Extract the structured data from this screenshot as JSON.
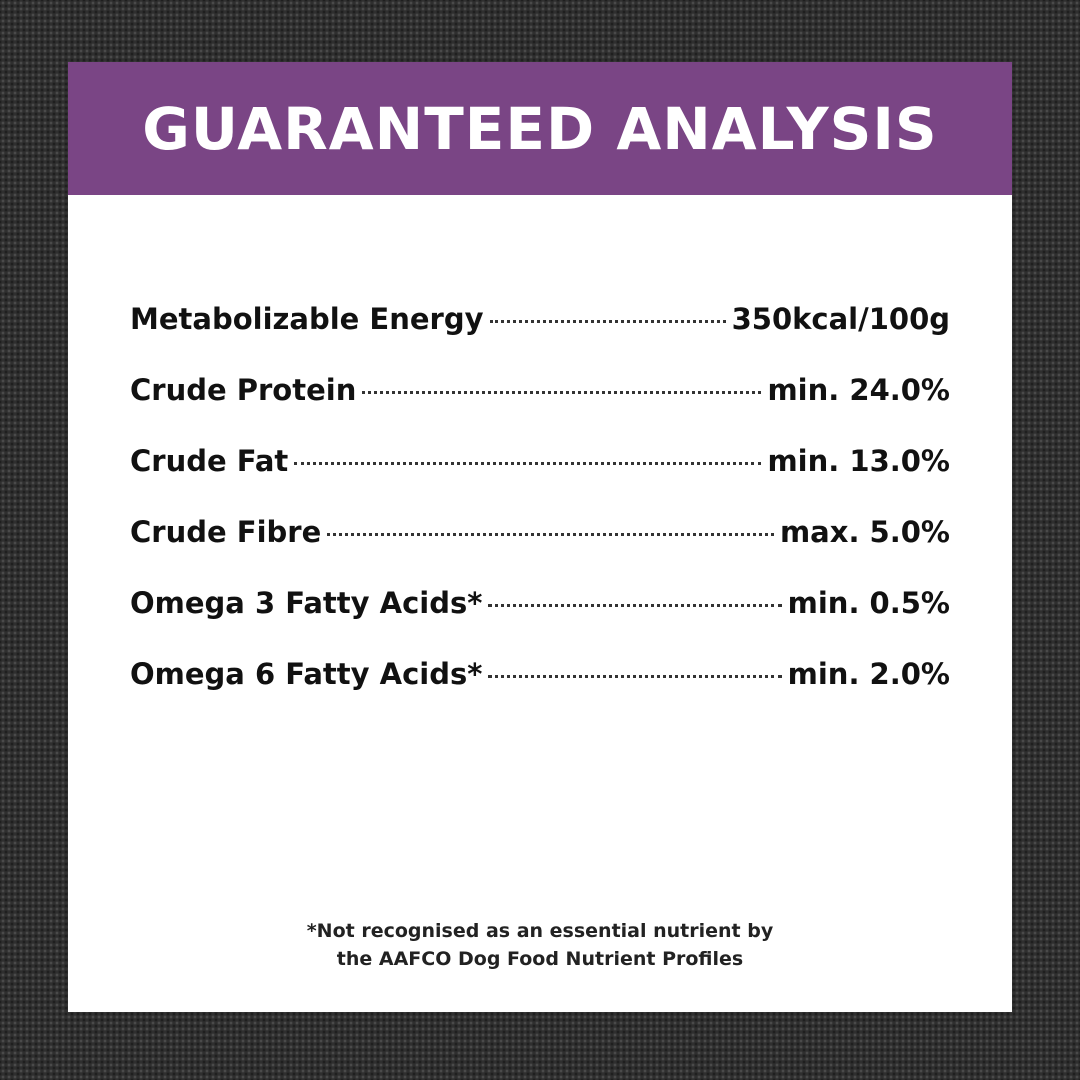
{
  "header": {
    "title": "GUARANTEED ANALYSIS"
  },
  "table": {
    "rows": [
      [
        "Metabolizable Energy",
        "350kcal/100g"
      ],
      [
        "Crude Protein",
        "min. 24.0%"
      ],
      [
        "Crude Fat",
        "min. 13.0%"
      ],
      [
        "Crude Fibre",
        "max. 5.0%"
      ],
      [
        "Omega 3 Fatty Acids*",
        "min. 0.5%"
      ],
      [
        "Omega 6 Fatty Acids*",
        "min. 2.0%"
      ]
    ]
  },
  "footnote": {
    "lines": [
      "*Not recognised as an essential nutrient by",
      "the AAFCO Dog Food Nutrient Profiles"
    ]
  }
}
